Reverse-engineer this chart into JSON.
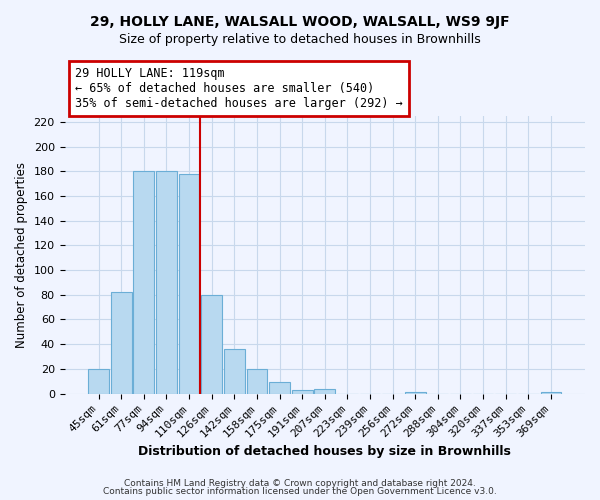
{
  "title": "29, HOLLY LANE, WALSALL WOOD, WALSALL, WS9 9JF",
  "subtitle": "Size of property relative to detached houses in Brownhills",
  "xlabel": "Distribution of detached houses by size in Brownhills",
  "ylabel": "Number of detached properties",
  "bar_color": "#b8d9f0",
  "bar_edge_color": "#6baed6",
  "bin_labels": [
    "45sqm",
    "61sqm",
    "77sqm",
    "94sqm",
    "110sqm",
    "126sqm",
    "142sqm",
    "158sqm",
    "175sqm",
    "191sqm",
    "207sqm",
    "223sqm",
    "239sqm",
    "256sqm",
    "272sqm",
    "288sqm",
    "304sqm",
    "320sqm",
    "337sqm",
    "353sqm",
    "369sqm"
  ],
  "bar_heights": [
    20,
    82,
    180,
    180,
    178,
    80,
    36,
    20,
    9,
    3,
    4,
    0,
    0,
    0,
    1,
    0,
    0,
    0,
    0,
    0,
    1
  ],
  "vline_color": "#cc0000",
  "ylim": [
    0,
    225
  ],
  "yticks": [
    0,
    20,
    40,
    60,
    80,
    100,
    120,
    140,
    160,
    180,
    200,
    220
  ],
  "annotation_title": "29 HOLLY LANE: 119sqm",
  "annotation_line1": "← 65% of detached houses are smaller (540)",
  "annotation_line2": "35% of semi-detached houses are larger (292) →",
  "footnote1": "Contains HM Land Registry data © Crown copyright and database right 2024.",
  "footnote2": "Contains public sector information licensed under the Open Government Licence v3.0.",
  "background_color": "#f0f4ff",
  "grid_color": "#c8d8ec"
}
